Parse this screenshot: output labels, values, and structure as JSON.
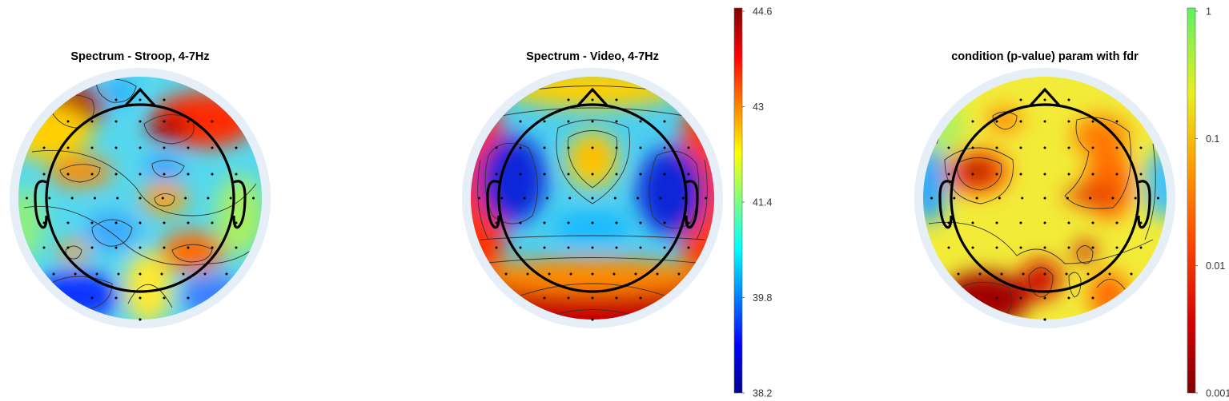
{
  "figure": {
    "panels": [
      {
        "title": "Spectrum - Stroop, 4-7Hz",
        "colormap": "jet"
      },
      {
        "title": "Spectrum - Video, 4-7Hz",
        "colormap": "jet"
      },
      {
        "title": "condition (p-value) param with fdr",
        "colormap": "pval"
      }
    ],
    "colorbars": [
      {
        "scale": "linear",
        "ticks": [
          "44.6",
          "43",
          "41.4",
          "39.8",
          "38.2"
        ]
      },
      {
        "scale": "log",
        "ticks": [
          "1",
          "0.1",
          "0.01",
          "0.001"
        ]
      }
    ],
    "colors": {
      "head_outline": "#000000",
      "head_rim": "#e6eef8",
      "electrode": "#000000"
    }
  },
  "chart_data": [
    {
      "type": "heatmap",
      "title": "Spectrum - Stroop, 4-7Hz",
      "colormap": "jet",
      "clim": [
        38.2,
        44.6
      ],
      "hotspots": [
        {
          "region": "left-frontal-pole",
          "value": 44.4
        },
        {
          "region": "right-frontal",
          "value": 44.0
        },
        {
          "region": "left-central",
          "value": 43.0
        },
        {
          "region": "midline-central",
          "value": 43.0
        },
        {
          "region": "right-parietal",
          "value": 43.4
        },
        {
          "region": "left-temporal-posterior",
          "value": 43.0
        },
        {
          "region": "left-occipital",
          "value": 38.8
        },
        {
          "region": "right-occipital",
          "value": 39.4
        },
        {
          "region": "midline-posterior",
          "value": 42.4
        }
      ]
    },
    {
      "type": "heatmap",
      "title": "Spectrum - Video, 4-7Hz",
      "colormap": "jet",
      "clim": [
        38.2,
        44.6
      ],
      "colorbar_ticks": [
        38.2,
        39.8,
        41.4,
        43,
        44.6
      ],
      "hotspots": [
        {
          "region": "left-temporal",
          "value": 38.6
        },
        {
          "region": "right-temporal",
          "value": 38.8
        },
        {
          "region": "frontal-midline",
          "value": 42.6
        },
        {
          "region": "occipital",
          "value": 44.4
        },
        {
          "region": "left-rim",
          "value": 43.8
        },
        {
          "region": "right-rim",
          "value": 43.6
        }
      ]
    },
    {
      "type": "heatmap",
      "title": "condition (p-value) param with fdr",
      "colormap": "pval",
      "scale": "log",
      "clim": [
        0.001,
        1
      ],
      "colorbar_ticks": [
        0.001,
        0.01,
        0.1,
        1
      ],
      "hotspots": [
        {
          "region": "left-frontal-central",
          "value": 0.002
        },
        {
          "region": "right-frontal-central",
          "value": 0.03
        },
        {
          "region": "left-frontal",
          "value": 0.05
        },
        {
          "region": "right-parietal",
          "value": 0.01
        },
        {
          "region": "left-occipital",
          "value": 0.002
        },
        {
          "region": "midline-occipital",
          "value": 0.005
        },
        {
          "region": "right-occipital",
          "value": 0.02
        }
      ]
    }
  ]
}
